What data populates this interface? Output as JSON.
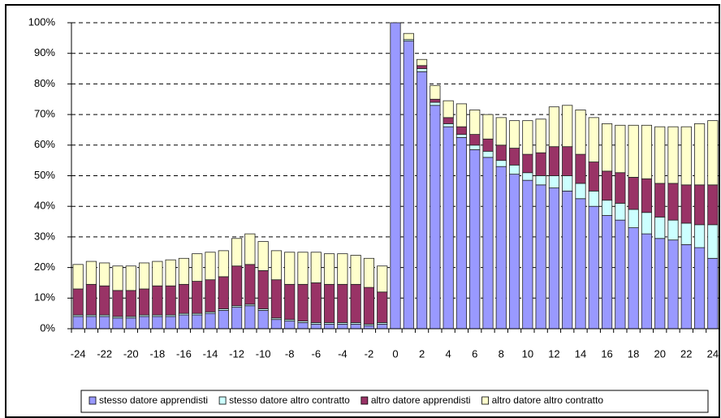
{
  "chart_data": {
    "type": "stacked_bar",
    "categories": [
      -24,
      null,
      -22,
      null,
      -20,
      null,
      -18,
      null,
      -16,
      null,
      -14,
      null,
      -12,
      null,
      -10,
      null,
      -8,
      null,
      -6,
      null,
      -4,
      null,
      -2,
      null,
      0,
      null,
      2,
      null,
      4,
      null,
      6,
      null,
      8,
      null,
      10,
      null,
      12,
      null,
      14,
      null,
      16,
      null,
      18,
      null,
      20,
      null,
      22,
      null,
      24
    ],
    "series": [
      {
        "name": "stesso datore apprendisti",
        "color": "#9999ff",
        "values": [
          4,
          4,
          4,
          3.5,
          3.5,
          4,
          4,
          4,
          4.5,
          4.5,
          5,
          6,
          7,
          7.5,
          6,
          3,
          2.5,
          2,
          1.5,
          1.5,
          1.5,
          1.5,
          1,
          1.5,
          100,
          94,
          84,
          73,
          66,
          62.5,
          58.5,
          56,
          53,
          50.5,
          48.5,
          47,
          46,
          45,
          42.5,
          40,
          37,
          35.5,
          33,
          31,
          29.5,
          29,
          27.5,
          26.5,
          23
        ]
      },
      {
        "name": "stesso datore altro contratto",
        "color": "#ccffff",
        "values": [
          0.5,
          0.5,
          0.5,
          0.5,
          0.5,
          0.5,
          0.5,
          0.5,
          0.5,
          0.5,
          0.5,
          0.5,
          0.5,
          0.5,
          0.5,
          0.5,
          0.5,
          0.5,
          0.5,
          0.5,
          0.5,
          0.5,
          0.5,
          0.5,
          0,
          0.5,
          1,
          1,
          1,
          1,
          1.5,
          2,
          2,
          3,
          2.5,
          3,
          4,
          5,
          5,
          5,
          5,
          5.5,
          6,
          7,
          7,
          6.5,
          7,
          7.5,
          11
        ]
      },
      {
        "name": "altro datore apprendisti",
        "color": "#993366",
        "values": [
          8.5,
          10,
          9.5,
          8.5,
          8.5,
          8.5,
          9.5,
          9.5,
          9.5,
          10.5,
          10.5,
          10.5,
          13,
          13,
          12.5,
          12.5,
          11.5,
          12,
          13,
          12.5,
          12.5,
          12.5,
          12,
          10,
          0,
          0,
          1,
          1,
          2,
          2.5,
          3.5,
          4,
          5,
          5.5,
          6,
          7.5,
          9.5,
          9.5,
          9.5,
          9.5,
          9.5,
          10,
          10.5,
          11,
          11,
          12,
          12.5,
          13,
          13
        ]
      },
      {
        "name": "altro datore altro contratto",
        "color": "#ffffcc",
        "values": [
          8,
          7.5,
          7.5,
          8,
          8,
          8.5,
          8,
          8.5,
          8.5,
          9,
          9,
          8.5,
          9,
          10,
          9.5,
          9.5,
          10.5,
          10.5,
          10,
          10,
          10,
          9.5,
          9.5,
          8.5,
          0,
          2,
          2,
          4.5,
          5.5,
          7.5,
          8,
          8,
          9,
          9,
          11,
          11,
          13,
          13.5,
          14.5,
          14.5,
          15.5,
          15.5,
          17,
          17.5,
          18.5,
          18.5,
          19,
          20,
          21
        ]
      }
    ],
    "ylim": [
      0,
      100
    ],
    "yticks": [
      {
        "value": 0,
        "label": "0%"
      },
      {
        "value": 10,
        "label": "10%"
      },
      {
        "value": 20,
        "label": "20%"
      },
      {
        "value": 30,
        "label": "30%"
      },
      {
        "value": 40,
        "label": "40%"
      },
      {
        "value": 50,
        "label": "50%"
      },
      {
        "value": 60,
        "label": "60%"
      },
      {
        "value": 70,
        "label": "70%"
      },
      {
        "value": 80,
        "label": "80%"
      },
      {
        "value": 90,
        "label": "90%"
      },
      {
        "value": 100,
        "label": "100%"
      }
    ],
    "grid": true,
    "legend": "bottom"
  }
}
